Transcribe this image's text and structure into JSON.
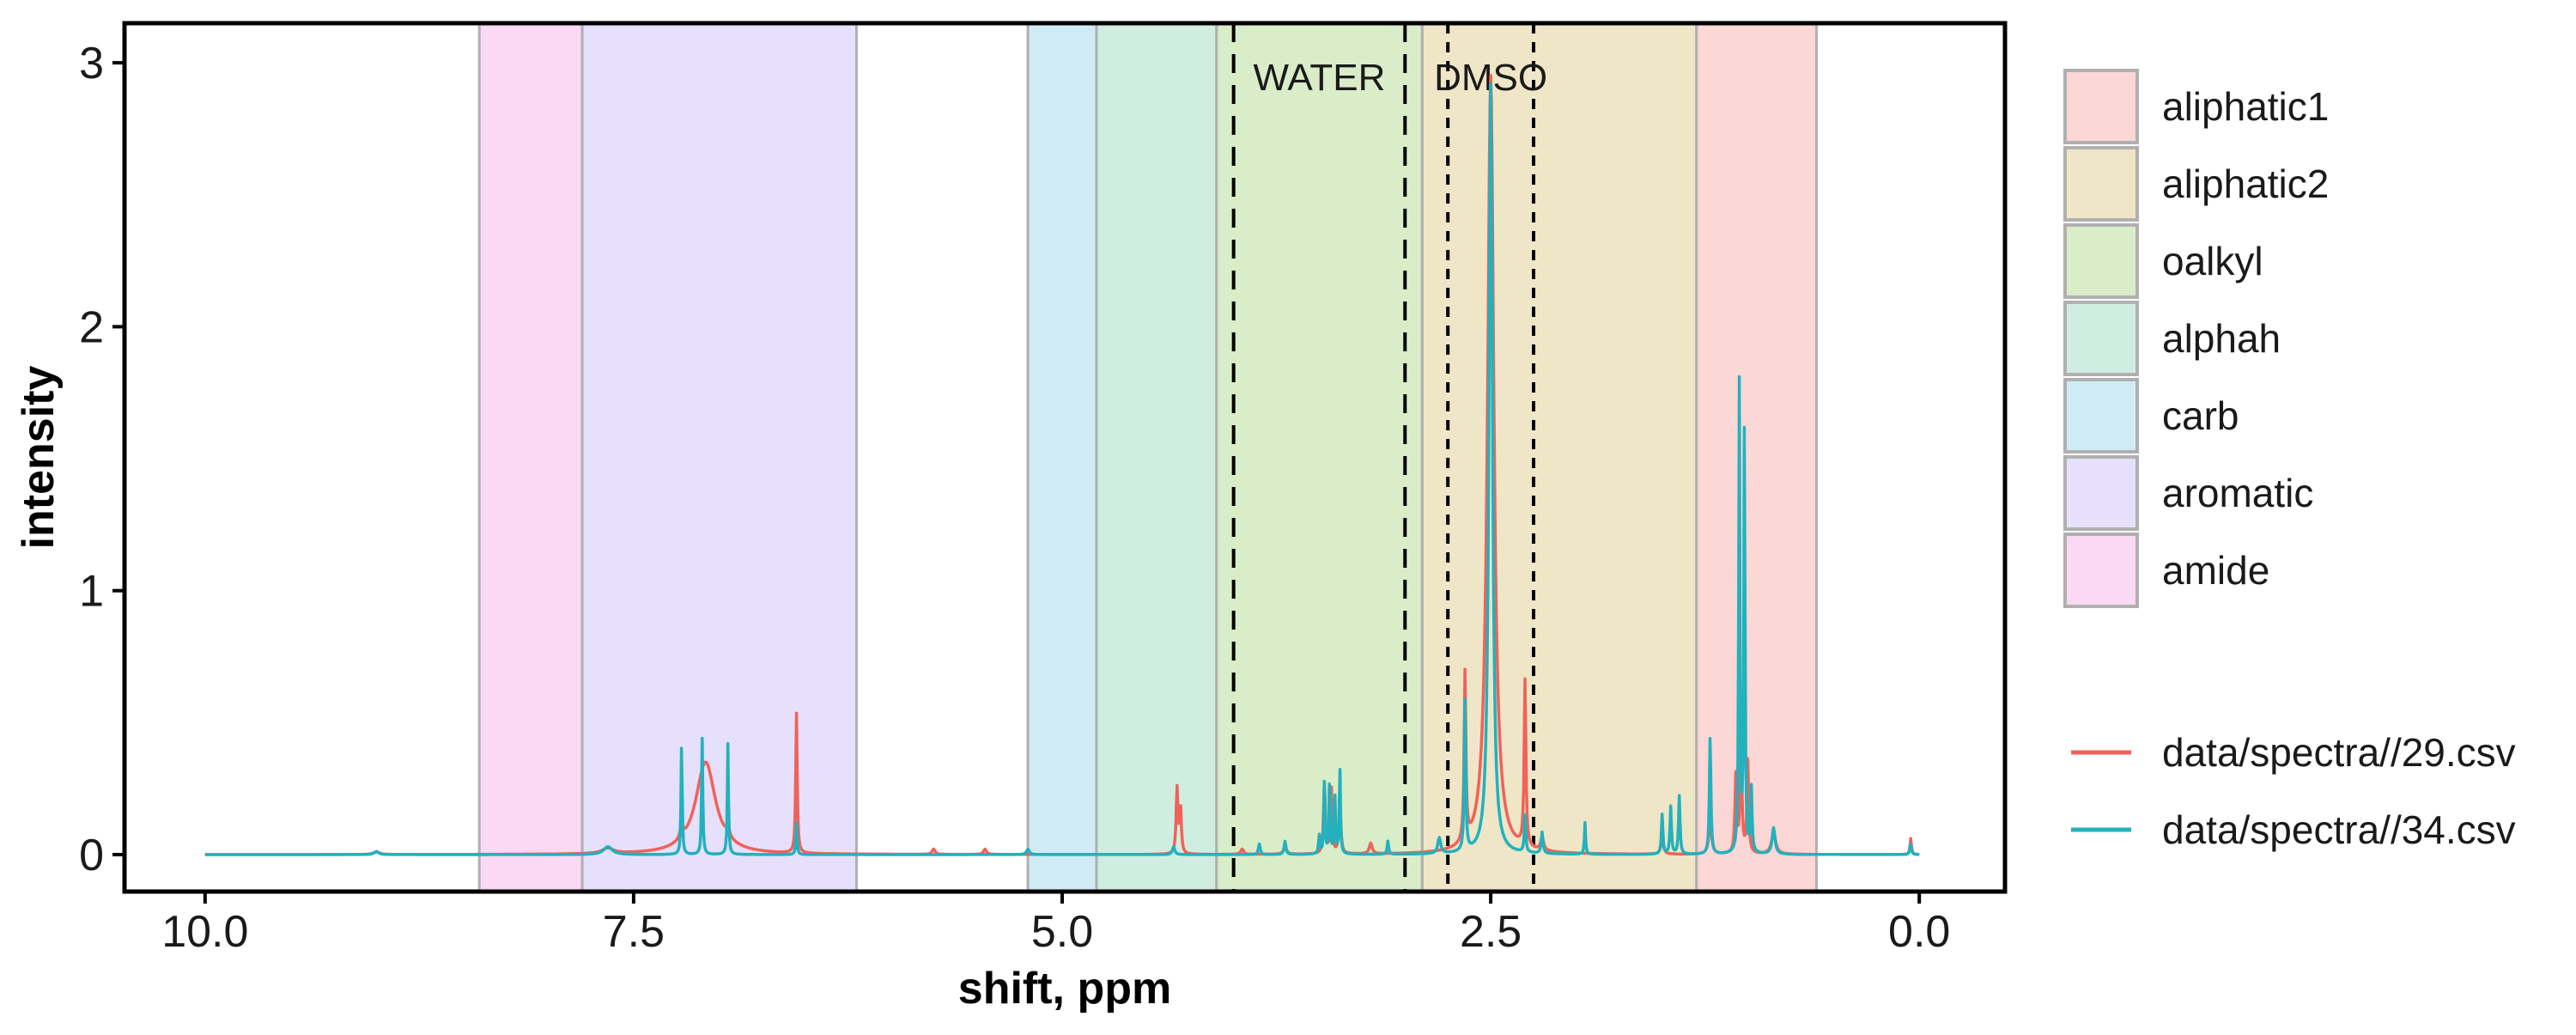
{
  "chart_data": {
    "type": "line",
    "xlabel": "shift, ppm",
    "ylabel": "intensity",
    "xlim": [
      10.47,
      -0.5
    ],
    "ylim": [
      -0.14,
      3.15
    ],
    "x_reversed": true,
    "x_ticks": [
      10.0,
      7.5,
      5.0,
      2.5,
      0.0
    ],
    "x_tick_labels": [
      "10.0",
      "7.5",
      "5.0",
      "2.5",
      "0.0"
    ],
    "y_ticks": [
      0,
      1,
      2,
      3
    ],
    "y_tick_labels": [
      "0",
      "1",
      "2",
      "3"
    ],
    "grid": false,
    "regions": [
      {
        "name": "aliphatic1",
        "from": 1.3,
        "to": 0.6,
        "color": "#fbd7d5"
      },
      {
        "name": "aliphatic2",
        "from": 2.9,
        "to": 1.3,
        "color": "#eee6c7"
      },
      {
        "name": "oalkyl",
        "from": 4.1,
        "to": 2.9,
        "color": "#d8edc8"
      },
      {
        "name": "alphah",
        "from": 4.8,
        "to": 4.1,
        "color": "#cfeee1"
      },
      {
        "name": "carb",
        "from": 5.2,
        "to": 4.8,
        "color": "#cfecf5"
      },
      {
        "name": "aromatic",
        "from": 7.8,
        "to": 6.2,
        "color": "#e6e0fc"
      },
      {
        "name": "amide",
        "from": 8.4,
        "to": 7.8,
        "color": "#fbd8f3"
      }
    ],
    "reference_lines": [
      {
        "label": "WATER",
        "x1": 4.0,
        "x2": 3.0,
        "dash": "long"
      },
      {
        "label": "DMSO",
        "x1": 2.75,
        "x2": 2.25,
        "dash": "short"
      }
    ],
    "legend_regions_title": "",
    "legend_series_title": "",
    "legend_position": "right",
    "series": [
      {
        "name": "data/spectra//29.csv",
        "color": "#f0625a",
        "peaks": [
          {
            "x": 9.0,
            "h": 0.01,
            "w": 0.02
          },
          {
            "x": 7.65,
            "h": 0.02,
            "w": 0.04
          },
          {
            "x": 7.22,
            "h": 0.05,
            "w": 0.01
          },
          {
            "x": 7.08,
            "h": 0.35,
            "w": 0.07
          },
          {
            "x": 6.95,
            "h": 0.04,
            "w": 0.01
          },
          {
            "x": 6.55,
            "h": 0.53,
            "w": 0.005
          },
          {
            "x": 5.75,
            "h": 0.02,
            "w": 0.01
          },
          {
            "x": 5.45,
            "h": 0.02,
            "w": 0.01
          },
          {
            "x": 4.33,
            "h": 0.25,
            "w": 0.006
          },
          {
            "x": 4.31,
            "h": 0.18,
            "w": 0.006
          },
          {
            "x": 3.95,
            "h": 0.02,
            "w": 0.01
          },
          {
            "x": 3.7,
            "h": 0.03,
            "w": 0.01
          },
          {
            "x": 3.47,
            "h": 0.27,
            "w": 0.006
          },
          {
            "x": 3.43,
            "h": 0.25,
            "w": 0.006
          },
          {
            "x": 3.38,
            "h": 0.22,
            "w": 0.006
          },
          {
            "x": 3.2,
            "h": 0.04,
            "w": 0.01
          },
          {
            "x": 2.65,
            "h": 0.64,
            "w": 0.006
          },
          {
            "x": 2.5,
            "h": 2.95,
            "w": 0.022
          },
          {
            "x": 2.3,
            "h": 0.63,
            "w": 0.006
          },
          {
            "x": 2.2,
            "h": 0.05,
            "w": 0.01
          },
          {
            "x": 1.5,
            "h": 0.05,
            "w": 0.01
          },
          {
            "x": 1.22,
            "h": 0.12,
            "w": 0.01
          },
          {
            "x": 1.07,
            "h": 0.3,
            "w": 0.006
          },
          {
            "x": 1.04,
            "h": 0.45,
            "w": 0.006
          },
          {
            "x": 1.0,
            "h": 0.35,
            "w": 0.006
          },
          {
            "x": 0.85,
            "h": 0.08,
            "w": 0.015
          },
          {
            "x": 0.05,
            "h": 0.06,
            "w": 0.005
          }
        ]
      },
      {
        "name": "data/spectra//34.csv",
        "color": "#22b1bd",
        "peaks": [
          {
            "x": 9.0,
            "h": 0.012,
            "w": 0.015
          },
          {
            "x": 7.65,
            "h": 0.03,
            "w": 0.03
          },
          {
            "x": 7.22,
            "h": 0.42,
            "w": 0.004
          },
          {
            "x": 7.1,
            "h": 0.44,
            "w": 0.004
          },
          {
            "x": 6.95,
            "h": 0.42,
            "w": 0.004
          },
          {
            "x": 6.55,
            "h": 0.12,
            "w": 0.004
          },
          {
            "x": 5.2,
            "h": 0.02,
            "w": 0.01
          },
          {
            "x": 4.35,
            "h": 0.03,
            "w": 0.008
          },
          {
            "x": 3.85,
            "h": 0.04,
            "w": 0.006
          },
          {
            "x": 3.7,
            "h": 0.05,
            "w": 0.006
          },
          {
            "x": 3.5,
            "h": 0.07,
            "w": 0.005
          },
          {
            "x": 3.47,
            "h": 0.28,
            "w": 0.004
          },
          {
            "x": 3.44,
            "h": 0.3,
            "w": 0.004
          },
          {
            "x": 3.41,
            "h": 0.25,
            "w": 0.004
          },
          {
            "x": 3.38,
            "h": 0.33,
            "w": 0.004
          },
          {
            "x": 3.1,
            "h": 0.05,
            "w": 0.005
          },
          {
            "x": 2.8,
            "h": 0.06,
            "w": 0.01
          },
          {
            "x": 2.65,
            "h": 0.57,
            "w": 0.005
          },
          {
            "x": 2.5,
            "h": 2.92,
            "w": 0.012
          },
          {
            "x": 2.3,
            "h": 0.14,
            "w": 0.005
          },
          {
            "x": 2.2,
            "h": 0.08,
            "w": 0.006
          },
          {
            "x": 1.95,
            "h": 0.12,
            "w": 0.004
          },
          {
            "x": 1.5,
            "h": 0.15,
            "w": 0.005
          },
          {
            "x": 1.45,
            "h": 0.18,
            "w": 0.005
          },
          {
            "x": 1.4,
            "h": 0.22,
            "w": 0.005
          },
          {
            "x": 1.22,
            "h": 0.45,
            "w": 0.005
          },
          {
            "x": 1.05,
            "h": 1.78,
            "w": 0.004
          },
          {
            "x": 1.02,
            "h": 1.65,
            "w": 0.004
          },
          {
            "x": 0.98,
            "h": 0.25,
            "w": 0.005
          },
          {
            "x": 0.85,
            "h": 0.1,
            "w": 0.01
          },
          {
            "x": 0.05,
            "h": 0.04,
            "w": 0.005
          }
        ]
      }
    ]
  }
}
